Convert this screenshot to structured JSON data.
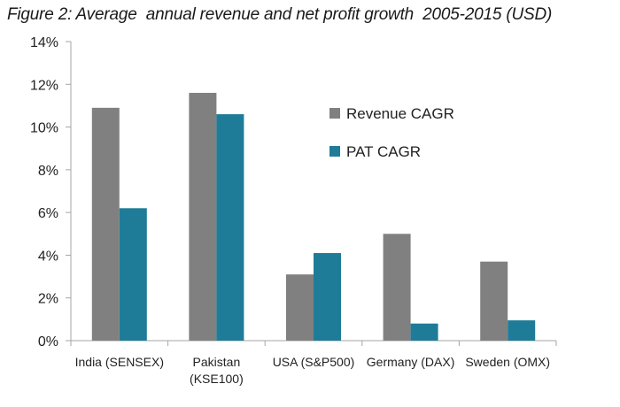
{
  "chart_data": {
    "type": "bar",
    "title": "Figure 2: Average  annual revenue and net profit growth  2005-2015 (USD)",
    "categories": [
      [
        "India (SENSEX)"
      ],
      [
        "Pakistan",
        "(KSE100)"
      ],
      [
        "USA (S&P500)"
      ],
      [
        "Germany (DAX)"
      ],
      [
        "Sweden (OMX)"
      ]
    ],
    "series": [
      {
        "name": "Revenue CAGR",
        "color": "#808080",
        "values": [
          10.9,
          11.6,
          3.1,
          5.0,
          3.7
        ]
      },
      {
        "name": "PAT CAGR",
        "color": "#1f7c98",
        "values": [
          6.2,
          10.6,
          4.1,
          0.8,
          0.95
        ]
      }
    ],
    "ylim": [
      0,
      14
    ],
    "yticks": [
      0,
      2,
      4,
      6,
      8,
      10,
      12,
      14
    ],
    "ytick_labels": [
      "0%",
      "2%",
      "4%",
      "6%",
      "8%",
      "10%",
      "12%",
      "14%"
    ],
    "xlabel": "",
    "ylabel": "",
    "grid": false,
    "legend_position": "top-right"
  }
}
